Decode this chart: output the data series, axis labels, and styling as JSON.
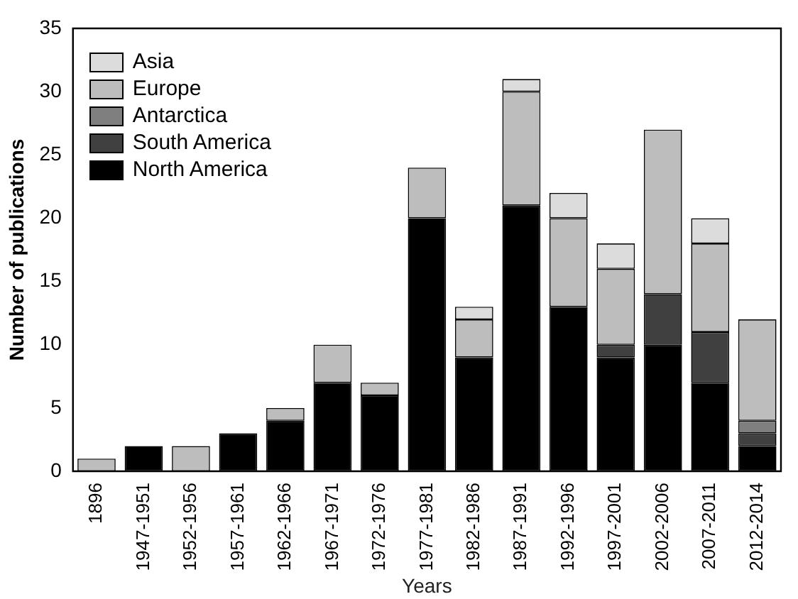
{
  "chart_data": {
    "type": "bar",
    "stacked": true,
    "xlabel": "Years",
    "ylabel": "Number of publications",
    "categories": [
      "1896",
      "1947-1951",
      "1952-1956",
      "1957-1961",
      "1962-1966",
      "1967-1971",
      "1972-1976",
      "1977-1981",
      "1982-1986",
      "1987-1991",
      "1992-1996",
      "1997-2001",
      "2002-2006",
      "2007-2011",
      "2012-2014"
    ],
    "series": [
      {
        "name": "North America",
        "color": "#000000",
        "values": [
          0,
          2,
          0,
          3,
          4,
          7,
          6,
          20,
          9,
          21,
          13,
          9,
          10,
          7,
          2
        ]
      },
      {
        "name": "South America",
        "color": "#404040",
        "values": [
          0,
          0,
          0,
          0,
          0,
          0,
          0,
          0,
          0,
          0,
          0,
          1,
          4,
          4,
          1
        ]
      },
      {
        "name": "Antarctica",
        "color": "#7f7f7f",
        "values": [
          0,
          0,
          0,
          0,
          0,
          0,
          0,
          0,
          0,
          0,
          0,
          0,
          0,
          0,
          1
        ]
      },
      {
        "name": "Europe",
        "color": "#bdbdbd",
        "values": [
          1,
          0,
          2,
          0,
          1,
          3,
          1,
          4,
          3,
          9,
          7,
          6,
          13,
          7,
          8
        ]
      },
      {
        "name": "Asia",
        "color": "#dcdcdc",
        "values": [
          0,
          0,
          0,
          0,
          0,
          0,
          0,
          0,
          1,
          1,
          2,
          2,
          0,
          2,
          0
        ]
      }
    ],
    "ylim": [
      0,
      35
    ],
    "yticks": [
      0,
      5,
      10,
      15,
      20,
      25,
      30,
      35
    ],
    "grid": false,
    "legend": "top left"
  }
}
